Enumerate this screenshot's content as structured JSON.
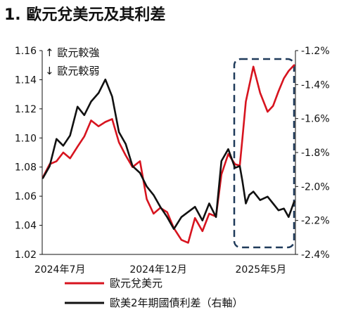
{
  "chart_data": {
    "type": "line",
    "title": "1. 歐元兌美元及其利差",
    "annotations": [
      "↑ 歐元較強",
      "↓ 歐元較弱"
    ],
    "x_ticks": [
      "2024年7月",
      "2024年12月",
      "2025年5月"
    ],
    "y_left": {
      "range": [
        1.02,
        1.16
      ],
      "ticks": [
        "1.16",
        "1.14",
        "1.12",
        "1.10",
        "1.08",
        "1.06",
        "1.04",
        "1.02"
      ]
    },
    "y_right": {
      "range": [
        -2.4,
        -1.2
      ],
      "ticks": [
        "-1.2%",
        "-1.4%",
        "-1.6%",
        "-1.8%",
        "-2.0%",
        "-2.2%",
        "-2.4%"
      ]
    },
    "legend_position": "bottom",
    "highlight_box": "dashed rounded rectangle around Apr–Jun 2025",
    "series": [
      {
        "name": "歐元兌美元",
        "axis": "left",
        "color": "#d7141f",
        "x": [
          "2024-06-15",
          "2024-06-25",
          "2024-07-05",
          "2024-07-15",
          "2024-07-25",
          "2024-08-05",
          "2024-08-15",
          "2024-08-25",
          "2024-09-05",
          "2024-09-15",
          "2024-09-25",
          "2024-10-05",
          "2024-10-15",
          "2024-10-25",
          "2024-11-05",
          "2024-11-15",
          "2024-11-25",
          "2024-12-05",
          "2024-12-15",
          "2024-12-25",
          "2025-01-05",
          "2025-01-15",
          "2025-01-25",
          "2025-02-05",
          "2025-02-15",
          "2025-02-25",
          "2025-03-05",
          "2025-03-15",
          "2025-03-25",
          "2025-04-01",
          "2025-04-05",
          "2025-04-10",
          "2025-04-15",
          "2025-04-21",
          "2025-05-01",
          "2025-05-12",
          "2025-05-20",
          "2025-05-28",
          "2025-06-05",
          "2025-06-12",
          "2025-06-20"
        ],
        "values": [
          1.073,
          1.082,
          1.084,
          1.09,
          1.086,
          1.094,
          1.101,
          1.112,
          1.108,
          1.111,
          1.113,
          1.097,
          1.088,
          1.08,
          1.084,
          1.058,
          1.048,
          1.052,
          1.049,
          1.038,
          1.03,
          1.028,
          1.045,
          1.036,
          1.048,
          1.046,
          1.075,
          1.089,
          1.082,
          1.081,
          1.1,
          1.125,
          1.136,
          1.149,
          1.131,
          1.118,
          1.122,
          1.132,
          1.141,
          1.146,
          1.15
        ]
      },
      {
        "name": "歐美2年期國債利差（右軸）",
        "axis": "right",
        "color": "#111111",
        "x": [
          "2024-06-15",
          "2024-06-25",
          "2024-07-05",
          "2024-07-15",
          "2024-07-25",
          "2024-08-05",
          "2024-08-15",
          "2024-08-25",
          "2024-09-05",
          "2024-09-15",
          "2024-09-25",
          "2024-10-05",
          "2024-10-15",
          "2024-10-25",
          "2024-11-05",
          "2024-11-15",
          "2024-11-25",
          "2024-12-05",
          "2024-12-15",
          "2024-12-25",
          "2025-01-05",
          "2025-01-15",
          "2025-01-25",
          "2025-02-05",
          "2025-02-15",
          "2025-02-25",
          "2025-03-05",
          "2025-03-15",
          "2025-03-25",
          "2025-04-01",
          "2025-04-05",
          "2025-04-10",
          "2025-04-15",
          "2025-04-21",
          "2025-05-01",
          "2025-05-12",
          "2025-05-20",
          "2025-05-28",
          "2025-06-05",
          "2025-06-12",
          "2025-06-20"
        ],
        "values": [
          -1.95,
          -1.88,
          -1.72,
          -1.76,
          -1.7,
          -1.53,
          -1.58,
          -1.5,
          -1.45,
          -1.37,
          -1.47,
          -1.68,
          -1.75,
          -1.88,
          -1.92,
          -2.0,
          -2.05,
          -2.12,
          -2.18,
          -2.25,
          -2.18,
          -2.15,
          -2.12,
          -2.2,
          -2.1,
          -2.18,
          -1.85,
          -1.78,
          -1.89,
          -1.88,
          -1.97,
          -2.1,
          -2.05,
          -2.03,
          -2.08,
          -2.06,
          -2.1,
          -2.14,
          -2.13,
          -2.18,
          -2.09
        ]
      }
    ]
  }
}
